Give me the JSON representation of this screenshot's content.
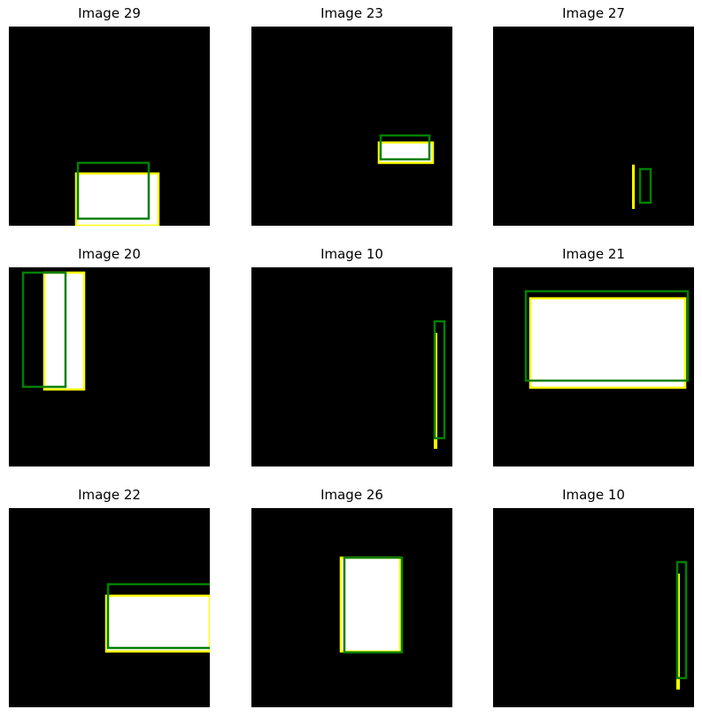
{
  "colors": {
    "background": "#000000",
    "object_fill": "#ffffff",
    "box_a": "#ffff00",
    "box_b": "#008000"
  },
  "panels": [
    {
      "title": "Image 29"
    },
    {
      "title": "Image 23"
    },
    {
      "title": "Image 27"
    },
    {
      "title": "Image 20"
    },
    {
      "title": "Image 10"
    },
    {
      "title": "Image 21"
    },
    {
      "title": "Image 22"
    },
    {
      "title": "Image 26"
    },
    {
      "title": "Image 10"
    }
  ]
}
